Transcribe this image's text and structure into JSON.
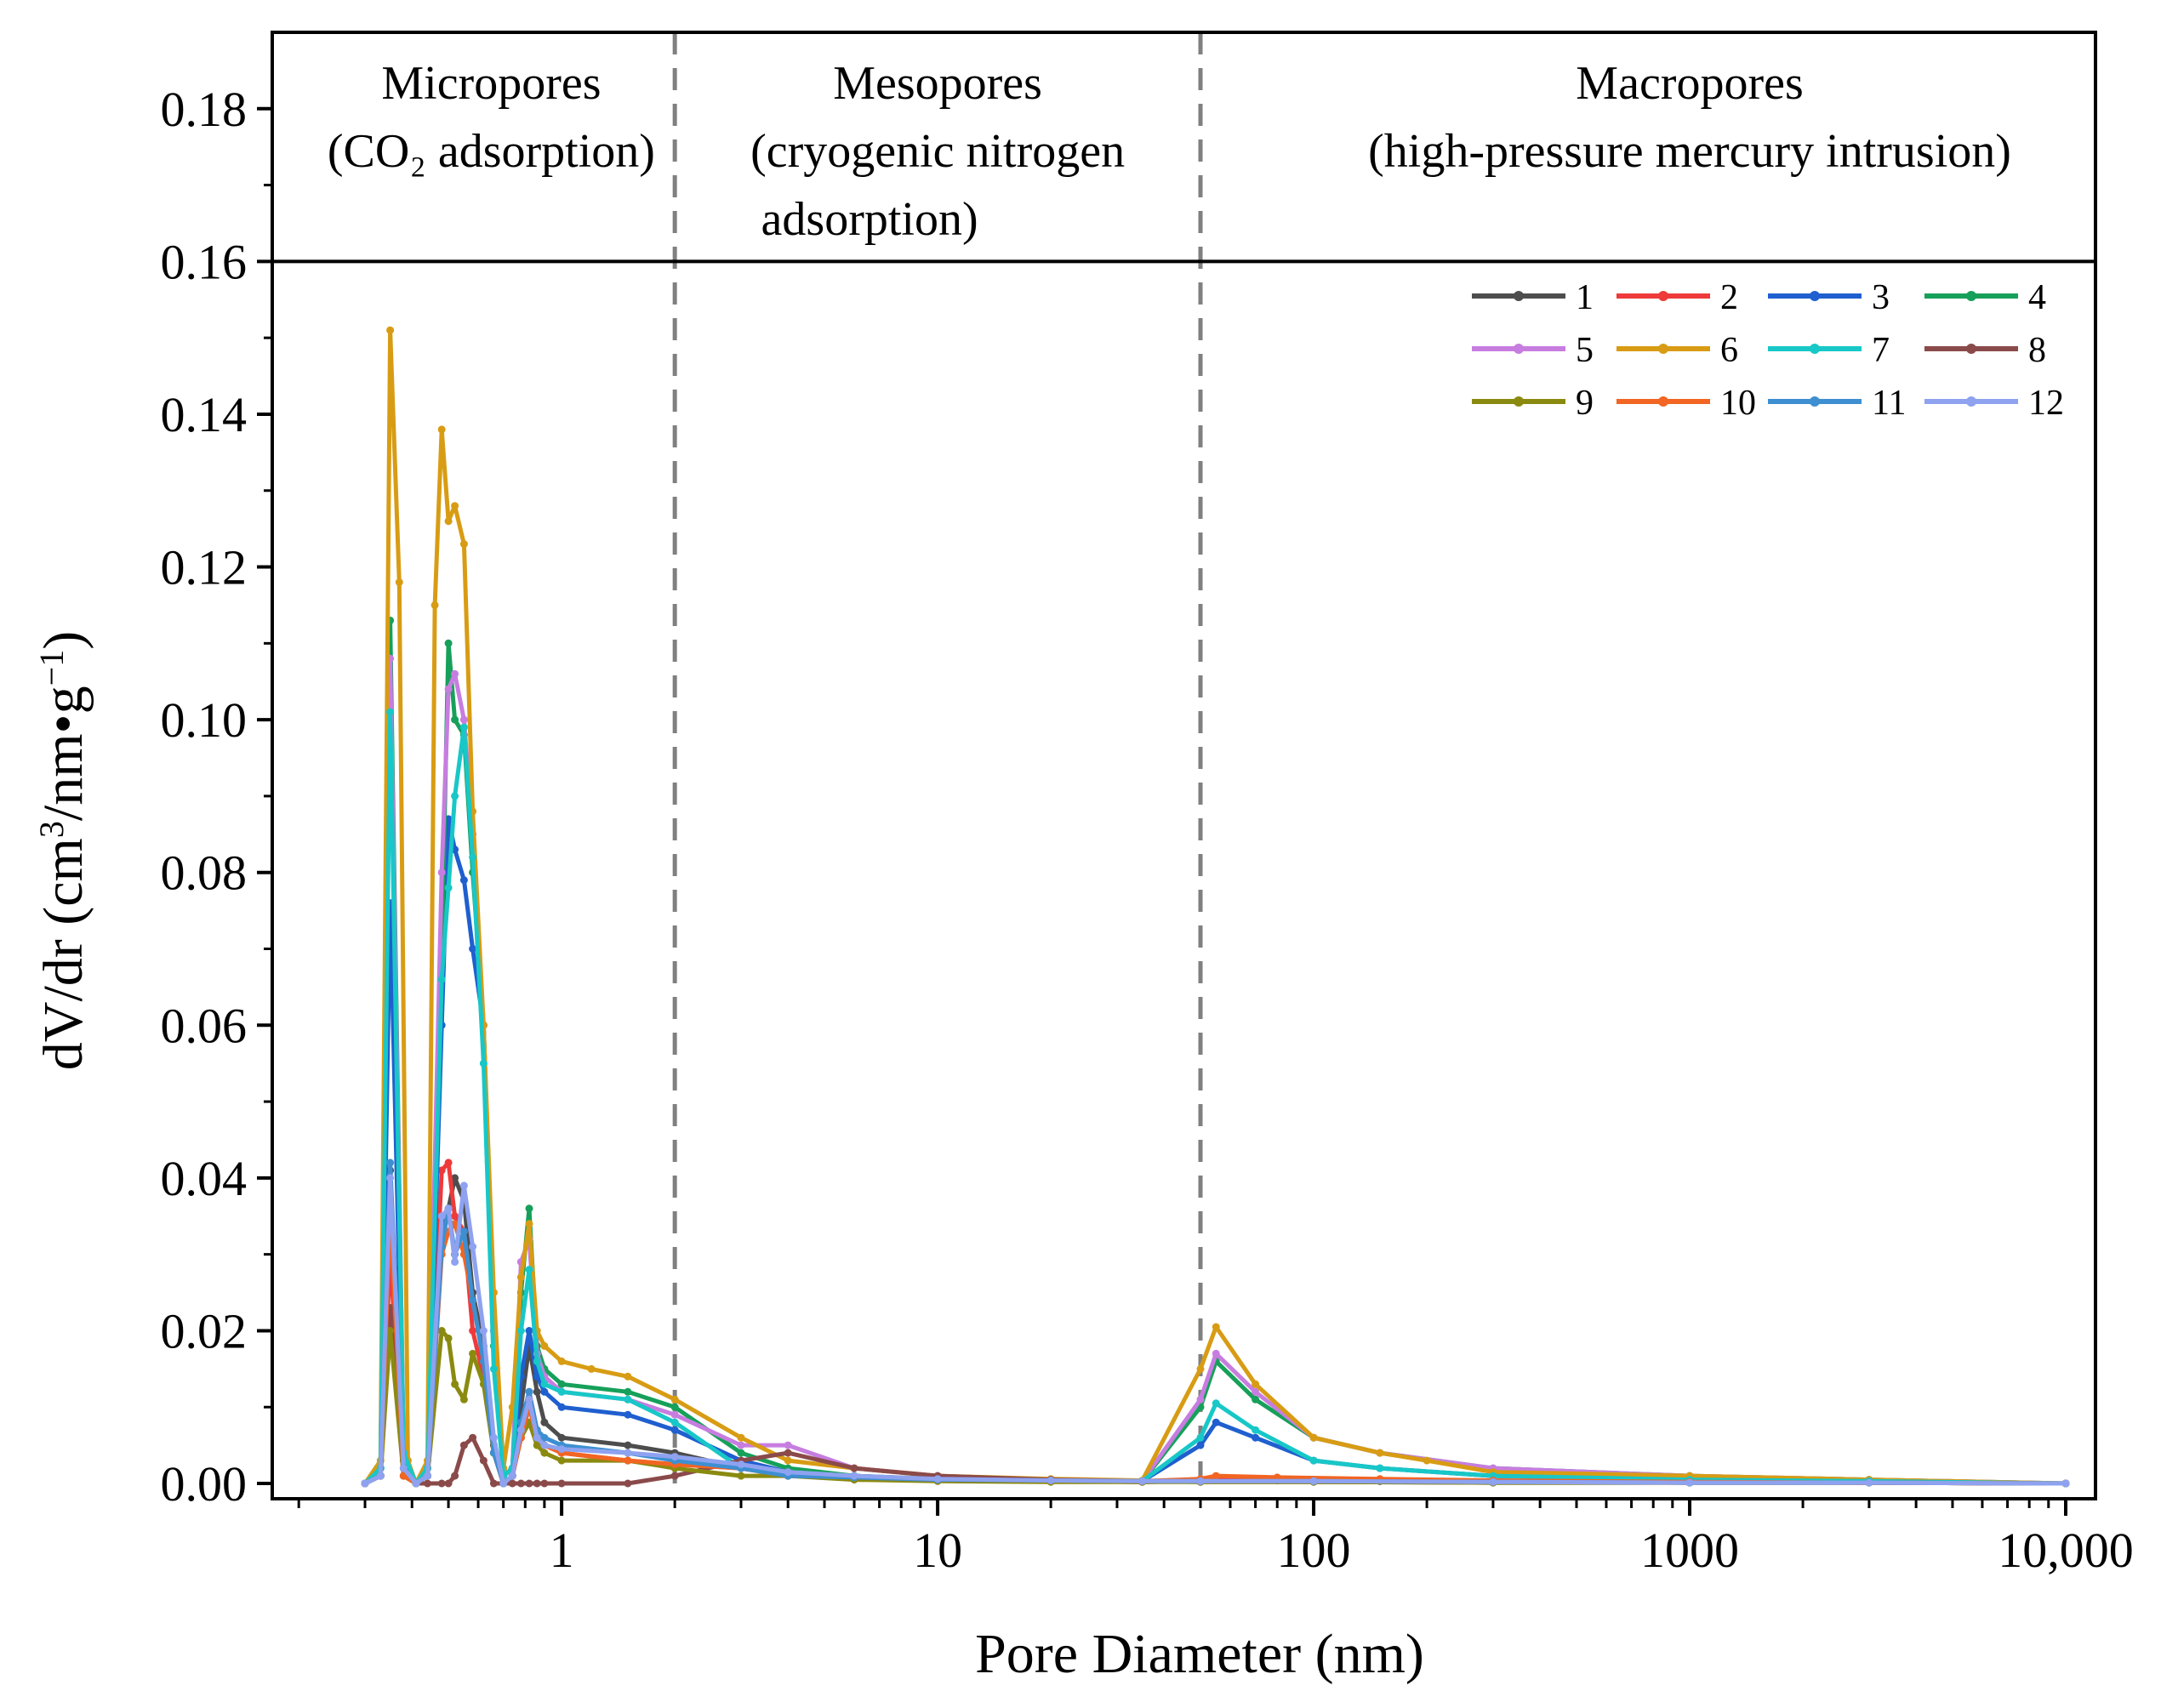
{
  "chart_data": {
    "type": "line",
    "xlabel": "Pore Diameter (nm)",
    "ylabel_parts": {
      "prefix": "dV/dr (cm",
      "sup1": "3",
      "mid": "/nm•g",
      "sup2": "−1",
      "suffix": ")"
    },
    "x_scale": "log",
    "xlim": [
      0.17,
      12000
    ],
    "ylim": [
      -0.002,
      0.19
    ],
    "x_ticks": [
      {
        "value": 1,
        "label": "1"
      },
      {
        "value": 10,
        "label": "10"
      },
      {
        "value": 100,
        "label": "100"
      },
      {
        "value": 1000,
        "label": "1000"
      },
      {
        "value": 10000,
        "label": "10,000"
      }
    ],
    "y_ticks": [
      {
        "value": 0.0,
        "label": "0.00"
      },
      {
        "value": 0.02,
        "label": "0.02"
      },
      {
        "value": 0.04,
        "label": "0.04"
      },
      {
        "value": 0.06,
        "label": "0.06"
      },
      {
        "value": 0.08,
        "label": "0.08"
      },
      {
        "value": 0.1,
        "label": "0.10"
      },
      {
        "value": 0.12,
        "label": "0.12"
      },
      {
        "value": 0.14,
        "label": "0.14"
      },
      {
        "value": 0.16,
        "label": "0.16"
      },
      {
        "value": 0.18,
        "label": "0.18"
      }
    ],
    "header_band_y": 0.16,
    "dividers": [
      2,
      50
    ],
    "regions": [
      {
        "title": "Micropores",
        "subtitle": "(CO₂ adsorption)",
        "x_center": 0.65
      },
      {
        "title": "Mesopores",
        "subtitle": "(cryogenic nitrogen",
        "subtitle2": "adsorption)",
        "x_center": 10
      },
      {
        "title": "Macropores",
        "subtitle": "(high-pressure mercury intrusion)",
        "x_center": 1000
      }
    ],
    "series": [
      {
        "name": "1",
        "color": "#4d4d4d",
        "x": [
          0.3,
          0.33,
          0.35,
          0.38,
          0.41,
          0.44,
          0.48,
          0.5,
          0.52,
          0.55,
          0.58,
          0.62,
          0.66,
          0.7,
          0.74,
          0.78,
          0.82,
          0.86,
          0.9,
          1.0,
          1.5,
          2.0,
          3.0,
          4.0,
          6.0,
          10,
          20,
          35,
          50,
          55,
          80,
          150,
          300,
          1000,
          3000,
          10000
        ],
        "y": [
          0.0,
          0.001,
          0.041,
          0.002,
          0.0,
          0.001,
          0.034,
          0.036,
          0.04,
          0.037,
          0.025,
          0.018,
          0.005,
          0.0,
          0.001,
          0.01,
          0.018,
          0.012,
          0.008,
          0.006,
          0.005,
          0.004,
          0.002,
          0.001,
          0.001,
          0.0005,
          0.0003,
          0.0002,
          0.0003,
          0.0005,
          0.0004,
          0.0003,
          0.0002,
          0.0001,
          0.0001,
          0.0
        ]
      },
      {
        "name": "2",
        "color": "#ee3a3a",
        "x": [
          0.3,
          0.33,
          0.35,
          0.38,
          0.41,
          0.44,
          0.48,
          0.5,
          0.52,
          0.55,
          0.58,
          0.62,
          0.66,
          0.7,
          0.74,
          0.78,
          0.82,
          0.86,
          0.9,
          1.0,
          1.5,
          2.0,
          3.0,
          4.0,
          6.0,
          10,
          20,
          35,
          50,
          55,
          80,
          150,
          300,
          1000,
          3000,
          10000
        ],
        "y": [
          0.0,
          0.001,
          0.03,
          0.001,
          0.0,
          0.001,
          0.041,
          0.042,
          0.035,
          0.033,
          0.02,
          0.014,
          0.004,
          0.0,
          0.001,
          0.006,
          0.012,
          0.007,
          0.005,
          0.004,
          0.003,
          0.0025,
          0.002,
          0.001,
          0.001,
          0.0005,
          0.0003,
          0.0002,
          0.0003,
          0.0008,
          0.0006,
          0.0004,
          0.0003,
          0.0002,
          0.0001,
          0.0
        ]
      },
      {
        "name": "3",
        "color": "#1f5fcf",
        "x": [
          0.3,
          0.33,
          0.35,
          0.38,
          0.41,
          0.44,
          0.48,
          0.5,
          0.52,
          0.55,
          0.58,
          0.62,
          0.66,
          0.7,
          0.74,
          0.78,
          0.82,
          0.86,
          0.9,
          1.0,
          1.5,
          2.0,
          3.0,
          4.0,
          6.0,
          10,
          20,
          35,
          50,
          55,
          70,
          100,
          150,
          300,
          1000,
          3000,
          10000
        ],
        "y": [
          0.0,
          0.001,
          0.076,
          0.003,
          0.0,
          0.001,
          0.06,
          0.087,
          0.083,
          0.079,
          0.07,
          0.06,
          0.02,
          0.001,
          0.002,
          0.014,
          0.02,
          0.014,
          0.012,
          0.01,
          0.009,
          0.007,
          0.003,
          0.0015,
          0.001,
          0.0005,
          0.0004,
          0.0003,
          0.005,
          0.008,
          0.006,
          0.003,
          0.002,
          0.001,
          0.0005,
          0.0003,
          0.0
        ]
      },
      {
        "name": "4",
        "color": "#16a05a",
        "x": [
          0.3,
          0.33,
          0.35,
          0.38,
          0.41,
          0.44,
          0.48,
          0.5,
          0.52,
          0.55,
          0.58,
          0.62,
          0.66,
          0.7,
          0.74,
          0.78,
          0.82,
          0.86,
          0.9,
          1.0,
          1.5,
          2.0,
          3.0,
          4.0,
          6.0,
          10,
          20,
          35,
          50,
          55,
          70,
          100,
          150,
          300,
          1000,
          3000,
          10000
        ],
        "y": [
          0.0,
          0.002,
          0.113,
          0.004,
          0.0,
          0.002,
          0.07,
          0.11,
          0.1,
          0.098,
          0.08,
          0.06,
          0.018,
          0.001,
          0.002,
          0.025,
          0.036,
          0.018,
          0.015,
          0.013,
          0.012,
          0.01,
          0.004,
          0.002,
          0.001,
          0.0006,
          0.0004,
          0.0003,
          0.01,
          0.016,
          0.011,
          0.006,
          0.004,
          0.002,
          0.001,
          0.0005,
          0.0
        ]
      },
      {
        "name": "5",
        "color": "#c77de0",
        "x": [
          0.3,
          0.33,
          0.35,
          0.38,
          0.41,
          0.44,
          0.48,
          0.5,
          0.52,
          0.55,
          0.58,
          0.62,
          0.66,
          0.7,
          0.74,
          0.78,
          0.82,
          0.86,
          0.9,
          1.0,
          1.5,
          2.0,
          3.0,
          4.0,
          6.0,
          10,
          20,
          35,
          50,
          55,
          70,
          100,
          150,
          300,
          1000,
          3000,
          10000
        ],
        "y": [
          0.0,
          0.002,
          0.108,
          0.004,
          0.0,
          0.002,
          0.08,
          0.104,
          0.106,
          0.1,
          0.085,
          0.06,
          0.02,
          0.001,
          0.002,
          0.029,
          0.032,
          0.017,
          0.014,
          0.012,
          0.011,
          0.009,
          0.005,
          0.005,
          0.002,
          0.001,
          0.0005,
          0.0003,
          0.011,
          0.017,
          0.012,
          0.006,
          0.004,
          0.002,
          0.001,
          0.0005,
          0.0
        ]
      },
      {
        "name": "6",
        "color": "#d89c14",
        "x": [
          0.3,
          0.33,
          0.35,
          0.37,
          0.39,
          0.41,
          0.44,
          0.46,
          0.48,
          0.5,
          0.52,
          0.55,
          0.58,
          0.62,
          0.66,
          0.7,
          0.74,
          0.78,
          0.82,
          0.86,
          0.9,
          1.0,
          1.2,
          1.5,
          2.0,
          3.0,
          4.0,
          6.0,
          10,
          20,
          35,
          50,
          55,
          70,
          100,
          150,
          200,
          300,
          1000,
          3000,
          10000
        ],
        "y": [
          0.0,
          0.003,
          0.151,
          0.118,
          0.003,
          0.0,
          0.003,
          0.115,
          0.138,
          0.126,
          0.128,
          0.123,
          0.088,
          0.06,
          0.025,
          0.002,
          0.01,
          0.027,
          0.034,
          0.02,
          0.018,
          0.016,
          0.015,
          0.014,
          0.011,
          0.006,
          0.003,
          0.002,
          0.001,
          0.0006,
          0.0004,
          0.015,
          0.0205,
          0.013,
          0.006,
          0.004,
          0.003,
          0.0015,
          0.001,
          0.0005,
          0.0
        ]
      },
      {
        "name": "7",
        "color": "#18c7c7",
        "x": [
          0.3,
          0.33,
          0.35,
          0.38,
          0.41,
          0.44,
          0.48,
          0.5,
          0.52,
          0.55,
          0.58,
          0.62,
          0.66,
          0.7,
          0.74,
          0.78,
          0.82,
          0.86,
          0.9,
          1.0,
          1.5,
          2.0,
          3.0,
          4.0,
          6.0,
          10,
          20,
          35,
          50,
          55,
          70,
          100,
          150,
          300,
          1000,
          3000,
          10000
        ],
        "y": [
          0.0,
          0.002,
          0.101,
          0.004,
          0.0,
          0.002,
          0.066,
          0.078,
          0.09,
          0.099,
          0.082,
          0.055,
          0.015,
          0.001,
          0.002,
          0.02,
          0.028,
          0.016,
          0.013,
          0.012,
          0.011,
          0.008,
          0.002,
          0.001,
          0.0008,
          0.0005,
          0.0004,
          0.0003,
          0.006,
          0.0105,
          0.007,
          0.003,
          0.002,
          0.001,
          0.0005,
          0.0003,
          0.0
        ]
      },
      {
        "name": "8",
        "color": "#8b4a4a",
        "x": [
          0.3,
          0.33,
          0.35,
          0.38,
          0.41,
          0.44,
          0.48,
          0.5,
          0.52,
          0.55,
          0.58,
          0.62,
          0.66,
          0.7,
          0.74,
          0.78,
          0.82,
          0.86,
          0.9,
          1.0,
          1.5,
          2.0,
          3.0,
          4.0,
          6.0,
          10,
          20,
          35,
          50,
          100,
          300,
          1000,
          3000,
          10000
        ],
        "y": [
          0.0,
          0.001,
          0.023,
          0.001,
          0.0,
          0.0,
          0.0,
          0.0,
          0.001,
          0.005,
          0.006,
          0.003,
          0.0,
          0.0,
          0.0,
          0.0,
          0.0,
          0.0,
          0.0,
          0.0,
          0.0,
          0.001,
          0.003,
          0.004,
          0.002,
          0.001,
          0.0005,
          0.0003,
          0.0002,
          0.0002,
          0.0001,
          0.0001,
          0.0001,
          0.0
        ]
      },
      {
        "name": "9",
        "color": "#8a8a10",
        "x": [
          0.3,
          0.33,
          0.35,
          0.38,
          0.41,
          0.44,
          0.48,
          0.5,
          0.52,
          0.55,
          0.58,
          0.62,
          0.66,
          0.7,
          0.74,
          0.78,
          0.82,
          0.86,
          0.9,
          1.0,
          1.5,
          2.0,
          3.0,
          4.0,
          6.0,
          10,
          20,
          35,
          50,
          100,
          300,
          1000,
          3000,
          10000
        ],
        "y": [
          0.0,
          0.001,
          0.02,
          0.001,
          0.0,
          0.001,
          0.02,
          0.019,
          0.013,
          0.011,
          0.017,
          0.013,
          0.004,
          0.0,
          0.001,
          0.006,
          0.008,
          0.005,
          0.004,
          0.003,
          0.003,
          0.002,
          0.001,
          0.001,
          0.0005,
          0.0003,
          0.0002,
          0.0002,
          0.0002,
          0.0002,
          0.0001,
          0.0001,
          0.0001,
          0.0
        ]
      },
      {
        "name": "10",
        "color": "#f26522",
        "x": [
          0.3,
          0.33,
          0.35,
          0.38,
          0.41,
          0.44,
          0.48,
          0.5,
          0.52,
          0.55,
          0.58,
          0.62,
          0.66,
          0.7,
          0.74,
          0.78,
          0.82,
          0.86,
          0.9,
          1.0,
          1.5,
          2.0,
          3.0,
          4.0,
          6.0,
          10,
          20,
          35,
          50,
          55,
          80,
          150,
          300,
          1000,
          3000,
          10000
        ],
        "y": [
          0.0,
          0.001,
          0.035,
          0.001,
          0.0,
          0.001,
          0.03,
          0.033,
          0.034,
          0.03,
          0.024,
          0.016,
          0.004,
          0.0,
          0.001,
          0.006,
          0.01,
          0.006,
          0.005,
          0.004,
          0.003,
          0.0025,
          0.002,
          0.001,
          0.0008,
          0.0005,
          0.0004,
          0.0003,
          0.0006,
          0.001,
          0.0008,
          0.0006,
          0.0004,
          0.0002,
          0.0001,
          0.0
        ]
      },
      {
        "name": "11",
        "color": "#3d8fd1",
        "x": [
          0.3,
          0.33,
          0.35,
          0.38,
          0.41,
          0.44,
          0.48,
          0.5,
          0.52,
          0.55,
          0.58,
          0.62,
          0.66,
          0.7,
          0.74,
          0.78,
          0.82,
          0.86,
          0.9,
          1.0,
          1.5,
          2.0,
          3.0,
          4.0,
          6.0,
          10,
          20,
          35,
          50,
          100,
          300,
          1000,
          3000,
          10000
        ],
        "y": [
          0.0,
          0.001,
          0.042,
          0.002,
          0.0,
          0.001,
          0.031,
          0.036,
          0.03,
          0.033,
          0.024,
          0.016,
          0.004,
          0.0,
          0.001,
          0.008,
          0.012,
          0.007,
          0.006,
          0.005,
          0.004,
          0.003,
          0.002,
          0.001,
          0.0008,
          0.0005,
          0.0004,
          0.0003,
          0.0003,
          0.0003,
          0.0002,
          0.0001,
          0.0001,
          0.0
        ]
      },
      {
        "name": "12",
        "color": "#8ea2f0",
        "x": [
          0.3,
          0.33,
          0.35,
          0.38,
          0.41,
          0.44,
          0.48,
          0.5,
          0.52,
          0.55,
          0.58,
          0.62,
          0.66,
          0.7,
          0.74,
          0.78,
          0.82,
          0.86,
          0.9,
          1.0,
          1.5,
          2.0,
          3.0,
          4.0,
          6.0,
          10,
          20,
          35,
          50,
          100,
          300,
          1000,
          3000,
          10000
        ],
        "y": [
          0.0,
          0.001,
          0.04,
          0.002,
          0.0,
          0.001,
          0.035,
          0.036,
          0.029,
          0.039,
          0.031,
          0.02,
          0.006,
          0.0,
          0.001,
          0.007,
          0.011,
          0.006,
          0.005,
          0.0045,
          0.004,
          0.0035,
          0.0025,
          0.0015,
          0.001,
          0.0006,
          0.0004,
          0.0003,
          0.0003,
          0.0003,
          0.0002,
          0.0001,
          0.0001,
          0.0
        ]
      }
    ]
  }
}
